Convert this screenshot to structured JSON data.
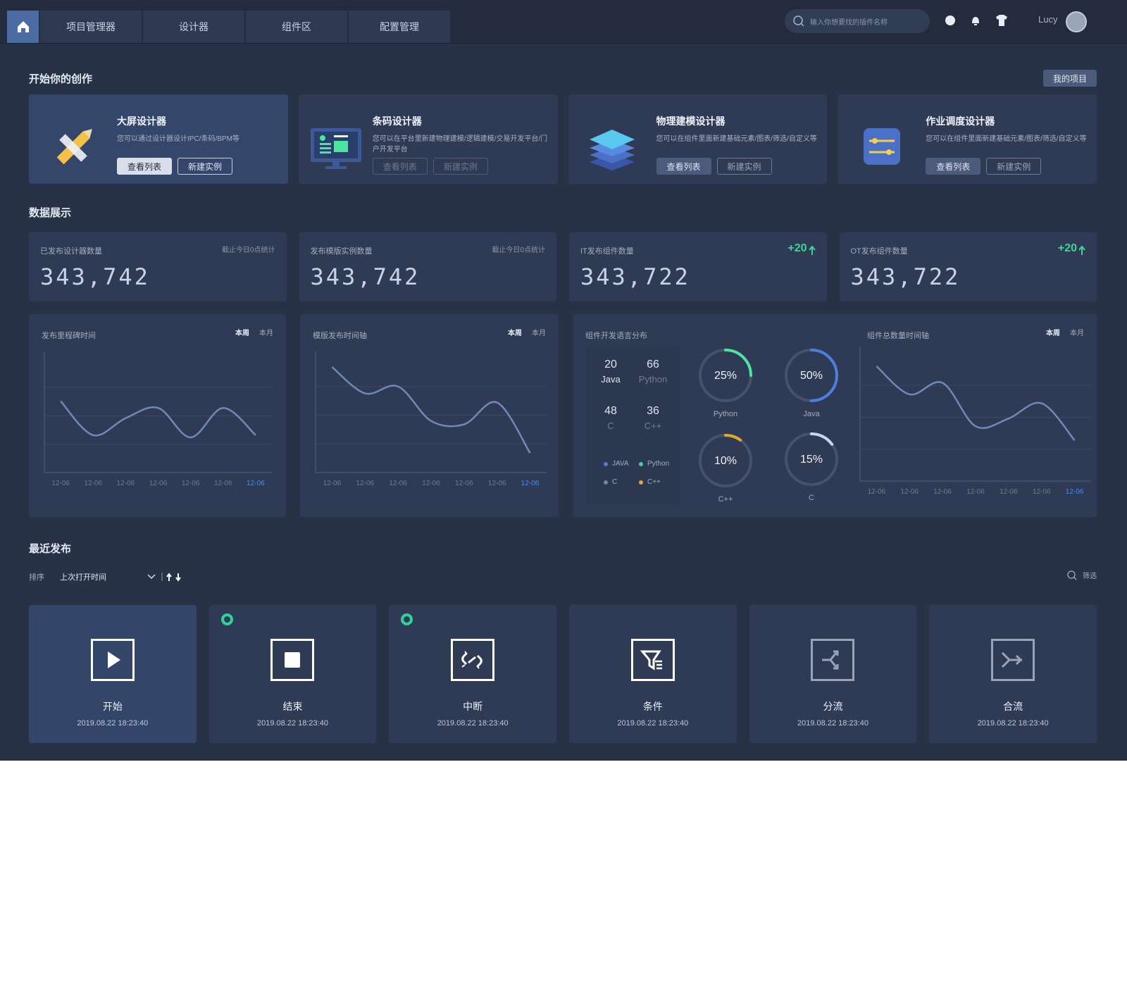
{
  "nav": {
    "tabs": [
      "项目管理器",
      "设计器",
      "组件区",
      "配置管理"
    ],
    "search_placeholder": "输入你想要找的插件名称",
    "user": "Lucy"
  },
  "create": {
    "title": "开始你的创作",
    "my_projects": "我的项目",
    "cards": [
      {
        "title": "大屏设计器",
        "desc": "您可以通过设计器设计IPC/条码/BPM等",
        "buttons": [
          "查看列表",
          "新建实例"
        ]
      },
      {
        "title": "条码设计器",
        "desc": "您可以在平台里新建物理建模/逻辑建模/交易开发平台/门户开发平台",
        "buttons": [
          "查看列表",
          "新建实例"
        ]
      },
      {
        "title": "物理建模设计器",
        "desc": "您可以在组件里面新建基础元素/图表/筛选/自定义等",
        "buttons": [
          "查看列表",
          "新建实例"
        ]
      },
      {
        "title": "作业调度设计器",
        "desc": "您可以在组件里面新建基础元素/图表/筛选/自定义等",
        "buttons": [
          "查看列表",
          "新建实例"
        ]
      }
    ]
  },
  "data_display": {
    "title": "数据展示",
    "stats": [
      {
        "label": "已发布设计器数量",
        "note": "截止今日0点统计",
        "value": "343,742"
      },
      {
        "label": "发布模版实例数量",
        "note": "截止今日0点统计",
        "value": "343,742"
      },
      {
        "label": "IT发布组件数量",
        "delta": "+20",
        "value": "343,722"
      },
      {
        "label": "OT发布组件数量",
        "delta": "+20",
        "value": "343,722"
      }
    ],
    "charts": [
      {
        "type": "line",
        "title": "发布里程碑时间",
        "tabs": [
          "本周",
          "本月"
        ],
        "categories": [
          "12-06",
          "12-06",
          "12-06",
          "12-06",
          "12-06",
          "12-06",
          "12-06"
        ],
        "values": [
          63,
          33,
          48,
          57,
          31,
          57,
          33
        ],
        "ylim": [
          0,
          100
        ],
        "color": "#6f8ab8"
      },
      {
        "type": "line",
        "title": "模版发布时间轴",
        "tabs": [
          "本周",
          "本月"
        ],
        "categories": [
          "12-06",
          "12-06",
          "12-06",
          "12-06",
          "12-06",
          "12-06",
          "12-06"
        ],
        "values": [
          92,
          69,
          75,
          45,
          42,
          61,
          17
        ],
        "ylim": [
          0,
          100
        ],
        "color": "#6f8ab8"
      },
      {
        "type": "line",
        "title": "组件总数量时间轴",
        "tabs": [
          "本周",
          "本月"
        ],
        "categories": [
          "12-06",
          "12-06",
          "12-06",
          "12-06",
          "12-06",
          "12-06",
          "12-06"
        ],
        "values": [
          90,
          68,
          77,
          43,
          49,
          61,
          32
        ],
        "ylim": [
          0,
          100
        ],
        "color": "#6f8ab8"
      }
    ],
    "languages": {
      "title": "组件开发语言分布",
      "counts": [
        {
          "value": 20,
          "name": "Java"
        },
        {
          "value": 66,
          "name": "Python"
        },
        {
          "value": 48,
          "name": "C"
        },
        {
          "value": 36,
          "name": "C++"
        }
      ],
      "legend": [
        {
          "name": "JAVA",
          "color": "#4a7fe0"
        },
        {
          "name": "Python",
          "color": "#3fd39a"
        },
        {
          "name": "C",
          "color": "#7a8498"
        },
        {
          "name": "C++",
          "color": "#e5a92b"
        }
      ],
      "donuts": [
        {
          "name": "Python",
          "value": 25,
          "value_label": "25%",
          "color": "#4de3a0"
        },
        {
          "name": "Java",
          "value": 50,
          "value_label": "50%",
          "color": "#4a7fe0"
        },
        {
          "name": "C++",
          "value": 10,
          "value_label": "10%",
          "color": "#e0a82e"
        },
        {
          "name": "C",
          "value": 15,
          "value_label": "15%",
          "color": "#c9d6ee"
        }
      ]
    }
  },
  "recent": {
    "title": "最近发布",
    "sort_label": "排序",
    "sort_value": "上次打开时间",
    "filter": "筛选",
    "items": [
      {
        "name": "开始",
        "time": "2019.08.22 18:23:40"
      },
      {
        "name": "结束",
        "time": "2019.08.22 18:23:40",
        "dot": true
      },
      {
        "name": "中断",
        "time": "2019.08.22 18:23:40",
        "dot": true
      },
      {
        "name": "条件",
        "time": "2019.08.22 18:23:40"
      },
      {
        "name": "分流",
        "time": "2019.08.22 18:23:40"
      },
      {
        "name": "合流",
        "time": "2019.08.22 18:23:40"
      }
    ]
  }
}
